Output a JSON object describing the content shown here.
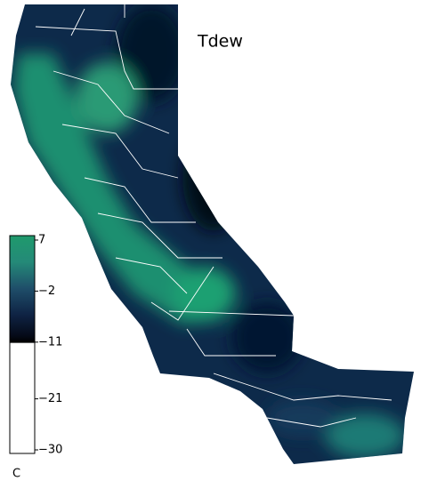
{
  "title": "Tdew",
  "colorbar": {
    "unit": "C",
    "lim": [
      -30,
      7
    ],
    "ticks": [
      {
        "value": 7,
        "label": "7"
      },
      {
        "value": -2,
        "label": "−2"
      },
      {
        "value": -11,
        "label": "−11"
      },
      {
        "value": -21,
        "label": "−21"
      },
      {
        "value": -30,
        "label": "−30"
      }
    ]
  }
}
